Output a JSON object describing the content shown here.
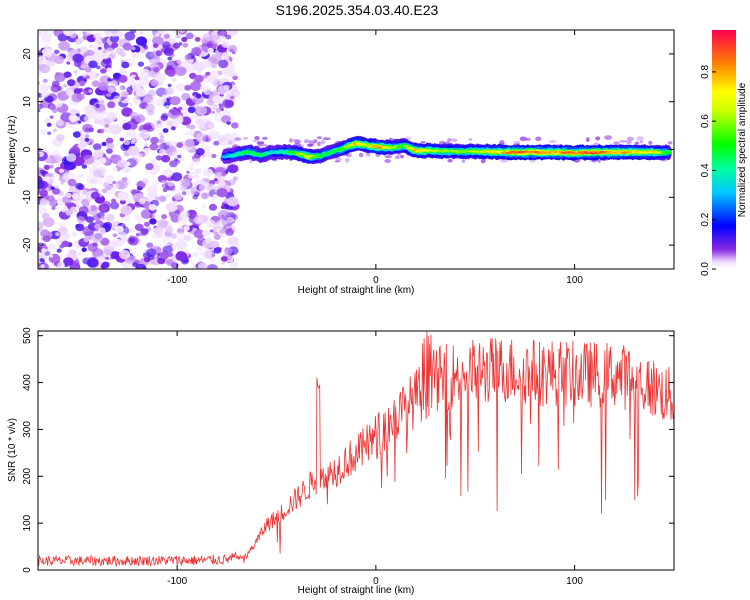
{
  "figure_title": "S196.2025.354.03.40.E23",
  "chart_data": [
    {
      "type": "heatmap",
      "name": "spectrogram",
      "xlabel": "Height of straight line (km)",
      "ylabel": "Frequency (Hz)",
      "xlim": [
        -170,
        150
      ],
      "ylim": [
        -25,
        25
      ],
      "xticks": [
        -100,
        0,
        100
      ],
      "xtick_labels": [
        "-100",
        "0",
        "100"
      ],
      "yticks": [
        -20,
        -10,
        0,
        10,
        20
      ],
      "ytick_labels": [
        "-20",
        "-10",
        "0",
        "10",
        "20"
      ],
      "noise_region_x": [
        -170,
        -72
      ],
      "signal_track": {
        "x": [
          -76,
          -70,
          -64,
          -58,
          -52,
          -46,
          -40,
          -34,
          -28,
          -22,
          -16,
          -10,
          -4,
          2,
          8,
          14,
          20,
          30,
          40,
          50,
          60,
          70,
          80,
          90,
          100,
          110,
          120,
          130,
          140,
          148
        ],
        "frequency_hz": [
          -1.5,
          -1.0,
          -0.5,
          -1.2,
          -0.6,
          -0.5,
          -0.7,
          -1.5,
          -1.3,
          -0.5,
          0.3,
          1.3,
          0.8,
          0.5,
          0.4,
          0.8,
          -0.2,
          -0.3,
          -0.4,
          -0.4,
          -0.5,
          -0.6,
          -0.6,
          -0.6,
          -0.7,
          -0.6,
          -0.6,
          -0.5,
          -0.6,
          -0.6
        ],
        "amplitude": [
          0.35,
          0.45,
          0.55,
          0.5,
          0.4,
          0.45,
          0.6,
          0.8,
          0.55,
          0.5,
          0.6,
          0.85,
          0.75,
          0.9,
          0.65,
          0.6,
          0.85,
          0.7,
          0.65,
          0.7,
          0.8,
          0.95,
          0.95,
          0.9,
          0.95,
          0.95,
          0.9,
          0.85,
          0.8,
          0.55
        ]
      }
    },
    {
      "type": "line",
      "name": "snr",
      "xlabel": "Height of straight line (km)",
      "ylabel": "SNR (10 * v/v)",
      "xlim": [
        -170,
        150
      ],
      "ylim": [
        0,
        510
      ],
      "xticks": [
        -100,
        0,
        100
      ],
      "xtick_labels": [
        "-100",
        "0",
        "100"
      ],
      "yticks": [
        0,
        100,
        200,
        300,
        400,
        500
      ],
      "ytick_labels": [
        "0",
        "100",
        "200",
        "300",
        "400",
        "500"
      ],
      "series": [
        {
          "name": "SNR",
          "color": "#ee3333",
          "x": [
            -170,
            -150,
            -130,
            -110,
            -90,
            -75,
            -65,
            -60,
            -55,
            -50,
            -45,
            -40,
            -35,
            -30,
            -25,
            -20,
            -15,
            -10,
            -5,
            0,
            5,
            10,
            15,
            20,
            25,
            30,
            40,
            50,
            60,
            70,
            80,
            90,
            100,
            110,
            120,
            130,
            140,
            150
          ],
          "values": [
            15,
            15,
            15,
            16,
            16,
            18,
            30,
            60,
            95,
            110,
            130,
            150,
            170,
            190,
            200,
            210,
            230,
            240,
            260,
            280,
            300,
            320,
            340,
            360,
            380,
            400,
            410,
            415,
            420,
            420,
            415,
            415,
            410,
            410,
            410,
            400,
            380,
            360
          ]
        }
      ]
    }
  ],
  "colorbar": {
    "label": "Normalized spectral amplitude",
    "range": [
      0,
      0.97
    ],
    "ticks": [
      0.0,
      0.2,
      0.4,
      0.6,
      0.8
    ],
    "tick_labels": [
      "0.0",
      "0.2",
      "0.4",
      "0.6",
      "0.8"
    ]
  }
}
